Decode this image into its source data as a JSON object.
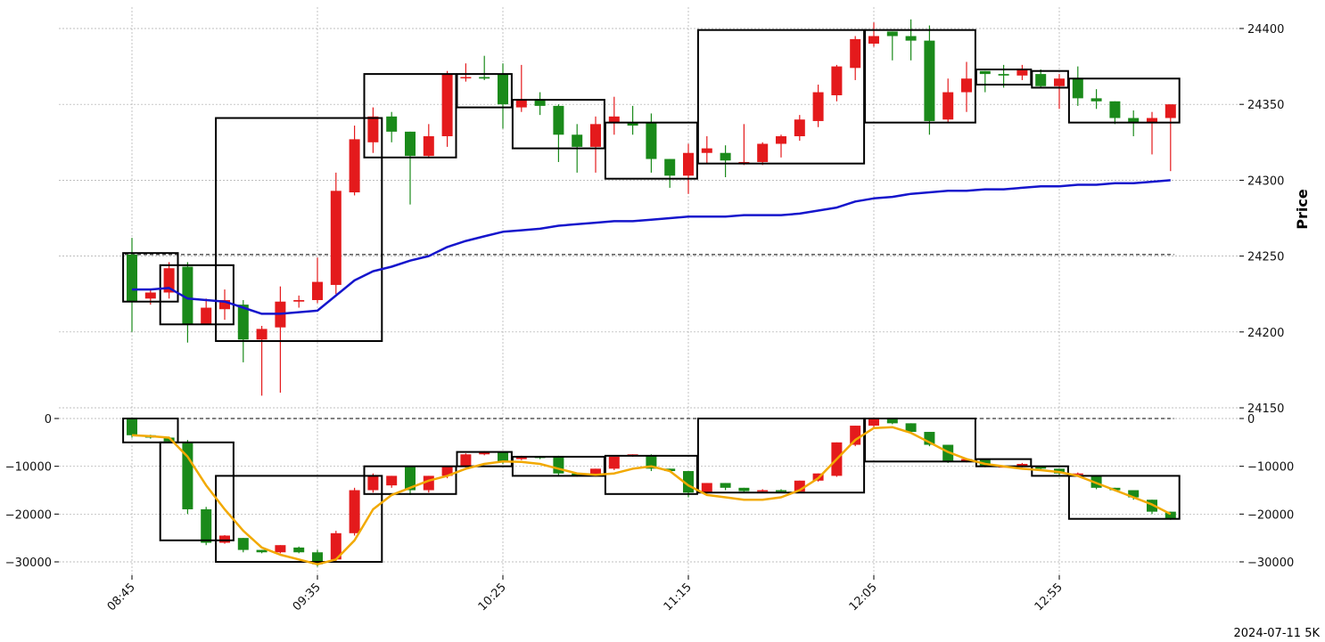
{
  "footer_label": "2024-07-11 5K",
  "colors": {
    "up": "#e41a1c",
    "down": "#1a8a1a",
    "ma_top": "#1515cc",
    "ma_bottom": "#f2a900",
    "box": "#000000",
    "grid": "#aaaaaa"
  },
  "chart_data": [
    {
      "type": "candlestick",
      "name": "price",
      "ylabel": "Price",
      "ylim": [
        24150,
        24400
      ],
      "yticks": [
        24150,
        24200,
        24250,
        24300,
        24350,
        24400
      ],
      "xtick_labels": [
        "08:45",
        "09:35",
        "10:25",
        "11:15",
        "12:05",
        "12:55"
      ],
      "xtick_index": [
        0,
        10,
        20,
        30,
        40,
        50
      ],
      "reference_line": 24251,
      "candles": [
        [
          24251,
          24220,
          24262,
          24200
        ],
        [
          24222,
          24226,
          24228,
          24218
        ],
        [
          24226,
          24242,
          24246,
          24222
        ],
        [
          24243,
          24205,
          24246,
          24193
        ],
        [
          24205,
          24216,
          24222,
          24205
        ],
        [
          24215,
          24221,
          24228,
          24208
        ],
        [
          24218,
          24195,
          24221,
          24180
        ],
        [
          24195,
          24202,
          24204,
          24158
        ],
        [
          24203,
          24220,
          24230,
          24160
        ],
        [
          24220,
          24221,
          24224,
          24216
        ],
        [
          24221,
          24233,
          24249,
          24219
        ],
        [
          24231,
          24293,
          24305,
          24225
        ],
        [
          24292,
          24327,
          24336,
          24290
        ],
        [
          24325,
          24342,
          24348,
          24318
        ],
        [
          24342,
          24332,
          24345,
          24325
        ],
        [
          24332,
          24316,
          24332,
          24284
        ],
        [
          24316,
          24329,
          24337,
          24315
        ],
        [
          24329,
          24370,
          24372,
          24322
        ],
        [
          24368,
          24368,
          24377,
          24365
        ],
        [
          24368,
          24367,
          24382,
          24366
        ],
        [
          24370,
          24350,
          24377,
          24334
        ],
        [
          24348,
          24353,
          24376,
          24345
        ],
        [
          24353,
          24349,
          24358,
          24343
        ],
        [
          24349,
          24330,
          24350,
          24312
        ],
        [
          24330,
          24322,
          24337,
          24305
        ],
        [
          24322,
          24337,
          24342,
          24305
        ],
        [
          24338,
          24342,
          24355,
          24330
        ],
        [
          24338,
          24336,
          24349,
          24330
        ],
        [
          24338,
          24314,
          24344,
          24305
        ],
        [
          24314,
          24303,
          24314,
          24295
        ],
        [
          24303,
          24318,
          24324,
          24291
        ],
        [
          24318,
          24321,
          24329,
          24311
        ],
        [
          24318,
          24313,
          24323,
          24302
        ],
        [
          24311,
          24312,
          24337,
          24310
        ],
        [
          24312,
          24324,
          24325,
          24310
        ],
        [
          24324,
          24329,
          24330,
          24315
        ],
        [
          24329,
          24340,
          24343,
          24326
        ],
        [
          24339,
          24358,
          24363,
          24335
        ],
        [
          24356,
          24375,
          24376,
          24352
        ],
        [
          24374,
          24393,
          24395,
          24366
        ],
        [
          24390,
          24395,
          24404,
          24388
        ],
        [
          24398,
          24395,
          24398,
          24379
        ],
        [
          24395,
          24392,
          24406,
          24379
        ],
        [
          24392,
          24339,
          24402,
          24330
        ],
        [
          24340,
          24358,
          24367,
          24338
        ],
        [
          24358,
          24367,
          24378,
          24345
        ],
        [
          24372,
          24370,
          24372,
          24358
        ],
        [
          24370,
          24369,
          24376,
          24361
        ],
        [
          24369,
          24373,
          24376,
          24366
        ],
        [
          24370,
          24362,
          24373,
          24361
        ],
        [
          24362,
          24367,
          24370,
          24347
        ],
        [
          24367,
          24354,
          24375,
          24349
        ],
        [
          24354,
          24352,
          24360,
          24347
        ],
        [
          24352,
          24341,
          24352,
          24337
        ],
        [
          24341,
          24338,
          24346,
          24329
        ],
        [
          24338,
          24341,
          24345,
          24317
        ],
        [
          24341,
          24350,
          24350,
          24306
        ]
      ],
      "boxes": [
        [
          0,
          2,
          24252,
          24220
        ],
        [
          2,
          5,
          24244,
          24205
        ],
        [
          5,
          13,
          24341,
          24194
        ],
        [
          13,
          17,
          24370,
          24315
        ],
        [
          18,
          20,
          24370,
          24348
        ],
        [
          21,
          25,
          24353,
          24321
        ],
        [
          26,
          30,
          24338,
          24301
        ],
        [
          31,
          39,
          24399,
          24311
        ],
        [
          40,
          45,
          24399,
          24338
        ],
        [
          46,
          48,
          24373,
          24363
        ],
        [
          49,
          50,
          24372,
          24361
        ],
        [
          51,
          56,
          24367,
          24338
        ]
      ],
      "moving_average": {
        "start": 0,
        "values": [
          24228,
          24228,
          24229,
          24222,
          24221,
          24220,
          24216,
          24212,
          24212,
          24213,
          24214,
          24224,
          24234,
          24240,
          24243,
          24247,
          24250,
          24256,
          24260,
          24263,
          24266,
          24267,
          24268,
          24270,
          24271,
          24272,
          24273,
          24273,
          24274,
          24275,
          24276,
          24276,
          24276,
          24277,
          24277,
          24277,
          24278,
          24280,
          24282,
          24286,
          24288,
          24289,
          24291,
          24292,
          24293,
          24293,
          24294,
          24294,
          24295,
          24296,
          24296,
          24297,
          24297,
          24298,
          24298,
          24299,
          24300
        ]
      }
    },
    {
      "type": "candlestick",
      "name": "indicator",
      "ylim": [
        -30000,
        0
      ],
      "yticks": [
        -30000,
        -20000,
        -10000,
        0
      ],
      "ytick_labels": [
        "−30000",
        "−20000",
        "−10000",
        "0"
      ],
      "reference_line": 0,
      "candles": [
        [
          0,
          -3500,
          0,
          -4000
        ],
        [
          -3500,
          -4000,
          -3400,
          -4200
        ],
        [
          -4000,
          -4800,
          -3800,
          -5000
        ],
        [
          -5000,
          -19000,
          -4500,
          -20000
        ],
        [
          -19000,
          -26000,
          -18500,
          -26500
        ],
        [
          -26000,
          -24500,
          -24400,
          -26200
        ],
        [
          -25000,
          -27500,
          -25000,
          -28000
        ],
        [
          -27500,
          -28000,
          -27500,
          -28200
        ],
        [
          -28000,
          -26500,
          -26500,
          -28200
        ],
        [
          -27000,
          -28000,
          -26800,
          -28200
        ],
        [
          -28000,
          -30500,
          -27500,
          -31000
        ],
        [
          -29500,
          -24000,
          -23500,
          -30000
        ],
        [
          -24000,
          -15000,
          -14500,
          -24500
        ],
        [
          -15000,
          -12000,
          -11500,
          -15500
        ],
        [
          -14000,
          -12000,
          -12000,
          -14500
        ],
        [
          -10000,
          -15000,
          -10000,
          -16000
        ],
        [
          -15000,
          -12000,
          -12000,
          -15500
        ],
        [
          -12000,
          -10000,
          -10000,
          -12500
        ],
        [
          -10000,
          -7500,
          -7300,
          -10200
        ],
        [
          -7500,
          -7000,
          -6800,
          -7700
        ],
        [
          -7000,
          -9000,
          -7000,
          -9500
        ],
        [
          -8500,
          -8000,
          -7800,
          -8700
        ],
        [
          -8000,
          -8200,
          -8000,
          -8500
        ],
        [
          -8000,
          -11500,
          -7800,
          -12000
        ],
        [
          -11500,
          -12000,
          -11500,
          -12200
        ],
        [
          -12000,
          -10500,
          -10500,
          -12200
        ],
        [
          -10500,
          -8000,
          -8000,
          -10800
        ],
        [
          -7800,
          -7500,
          -7500,
          -8000
        ],
        [
          -7800,
          -10500,
          -7500,
          -11000
        ],
        [
          -10500,
          -11000,
          -10500,
          -11200
        ],
        [
          -11000,
          -15500,
          -11000,
          -16500
        ],
        [
          -15500,
          -13500,
          -13500,
          -15700
        ],
        [
          -13500,
          -14500,
          -13500,
          -15000
        ],
        [
          -14500,
          -15200,
          -14500,
          -15500
        ],
        [
          -15200,
          -15000,
          -14800,
          -15400
        ],
        [
          -15000,
          -15300,
          -14800,
          -15600
        ],
        [
          -15300,
          -13000,
          -13000,
          -15500
        ],
        [
          -13000,
          -11500,
          -11500,
          -13200
        ],
        [
          -12000,
          -5000,
          -5000,
          -12200
        ],
        [
          -5500,
          -1500,
          -1500,
          -5800
        ],
        [
          -1500,
          0,
          0,
          -1800
        ],
        [
          0,
          -1000,
          0,
          -1200
        ],
        [
          -1000,
          -2800,
          -1000,
          -3000
        ],
        [
          -2800,
          -5500,
          -2800,
          -5800
        ],
        [
          -5500,
          -9000,
          -5500,
          -9300
        ],
        [
          -9000,
          -8500,
          -8500,
          -9200
        ],
        [
          -8500,
          -10000,
          -8500,
          -10200
        ],
        [
          -10000,
          -10000,
          -9800,
          -10200
        ],
        [
          -10000,
          -9500,
          -9300,
          -10200
        ],
        [
          -10000,
          -10500,
          -10000,
          -10800
        ],
        [
          -10500,
          -11500,
          -10500,
          -11800
        ],
        [
          -11500,
          -11500,
          -11300,
          -11700
        ],
        [
          -12000,
          -14500,
          -12000,
          -14800
        ],
        [
          -14500,
          -15000,
          -14500,
          -15200
        ],
        [
          -15000,
          -16500,
          -15000,
          -17000
        ],
        [
          -17000,
          -19500,
          -17000,
          -20000
        ],
        [
          -19500,
          -21000,
          -19500,
          -21200
        ]
      ],
      "boxes": [
        [
          0,
          2,
          0,
          -5000
        ],
        [
          2,
          5,
          -5000,
          -25500
        ],
        [
          5,
          13,
          -12000,
          -30000
        ],
        [
          13,
          17,
          -10000,
          -15800
        ],
        [
          18,
          20,
          -7000,
          -10000
        ],
        [
          21,
          25,
          -8000,
          -12000
        ],
        [
          26,
          30,
          -7800,
          -15800
        ],
        [
          31,
          39,
          0,
          -15500
        ],
        [
          40,
          45,
          0,
          -9000
        ],
        [
          46,
          48,
          -8500,
          -10000
        ],
        [
          49,
          50,
          -10000,
          -12000
        ],
        [
          51,
          56,
          -12000,
          -21000
        ]
      ],
      "moving_average": {
        "start": 0,
        "values": [
          -3500,
          -3700,
          -4000,
          -8000,
          -14000,
          -19000,
          -23500,
          -27000,
          -28500,
          -29500,
          -30500,
          -29500,
          -25500,
          -19000,
          -16000,
          -14500,
          -13000,
          -12000,
          -10500,
          -9500,
          -9000,
          -9100,
          -9500,
          -10500,
          -11500,
          -11800,
          -11500,
          -10500,
          -10000,
          -11000,
          -14000,
          -16000,
          -16500,
          -17000,
          -17000,
          -16500,
          -15000,
          -12500,
          -8500,
          -4500,
          -2000,
          -1800,
          -3000,
          -5000,
          -7000,
          -8500,
          -9500,
          -10000,
          -10500,
          -10800,
          -11200,
          -12000,
          -13500,
          -15000,
          -16500,
          -18000,
          -20000
        ]
      }
    }
  ]
}
